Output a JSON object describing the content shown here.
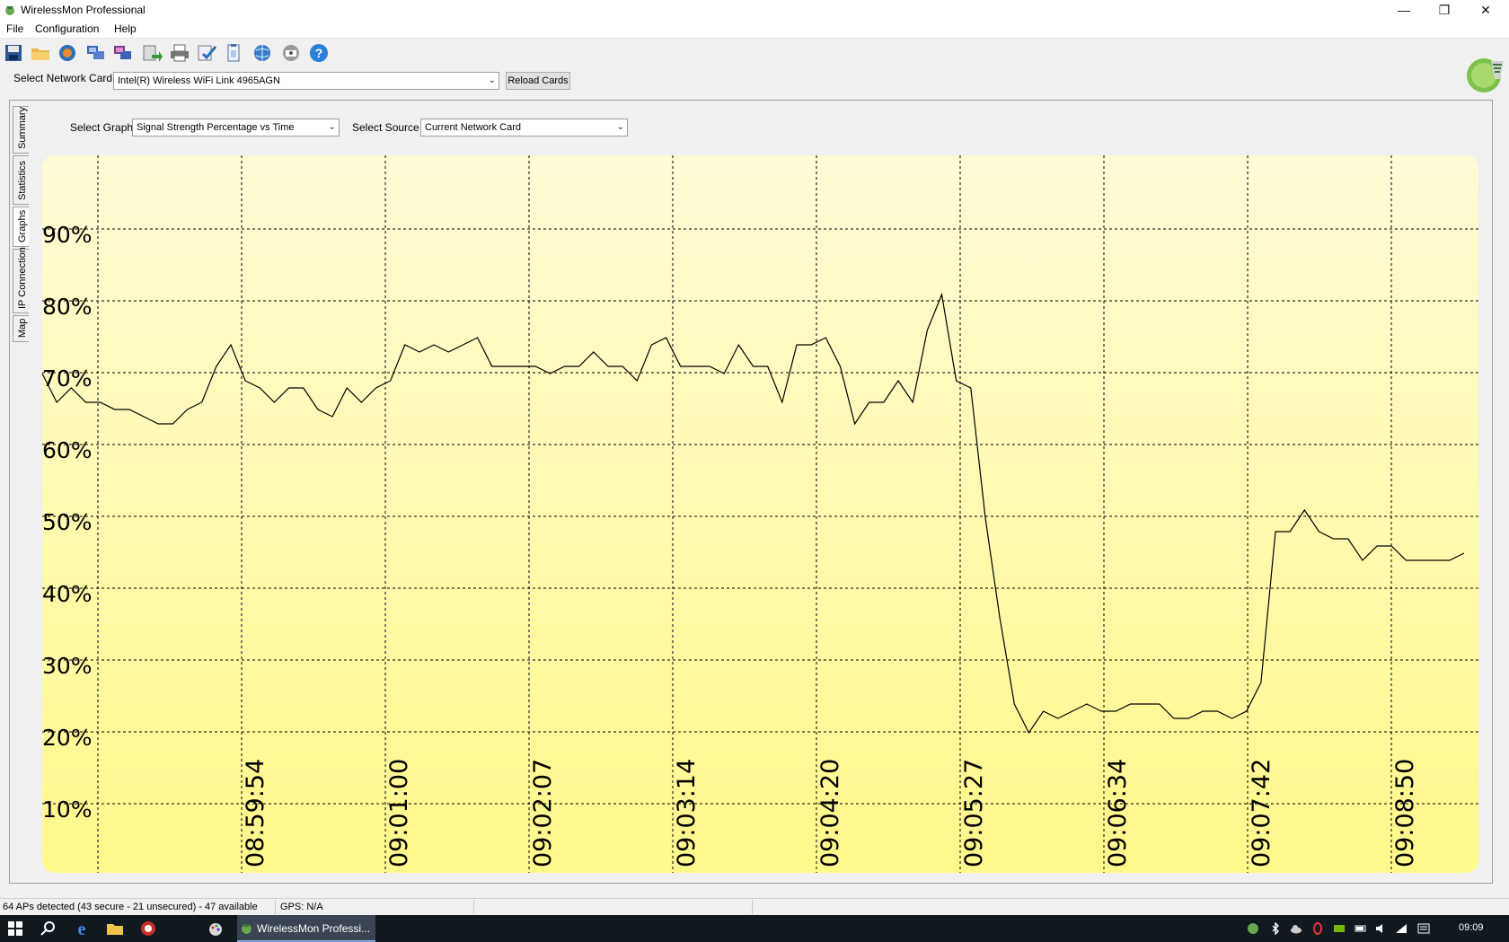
{
  "window": {
    "title": "WirelessMon Professional",
    "controls": {
      "minimize": "—",
      "restore": "❐",
      "close": "✕"
    }
  },
  "menu": [
    "File",
    "Configuration",
    "Help"
  ],
  "toolbar_icons": [
    "save-icon",
    "open-folder-icon",
    "record-icon",
    "network-card-icon",
    "log-icon",
    "export-icon",
    "print-icon",
    "check-icon",
    "clipboard-icon",
    "globe-icon",
    "info-icon",
    "help-icon"
  ],
  "network": {
    "select_label": "Select Network Card",
    "selected_card": "Intel(R) Wireless WiFi Link 4965AGN",
    "reload_label": "Reload Cards"
  },
  "tabs": [
    "Summary",
    "Statistics",
    "Graphs",
    "IP Connection",
    "Map"
  ],
  "active_tab": "Graphs",
  "graph_controls": {
    "graph_label": "Select Graph",
    "graph_value": "Signal Strength Percentage vs Time",
    "source_label": "Select Source",
    "source_value": "Current Network Card"
  },
  "chart_data": {
    "type": "line",
    "ylabels": [
      "90%",
      "80%",
      "70%",
      "60%",
      "50%",
      "40%",
      "30%",
      "20%",
      "10%"
    ],
    "ylim": [
      0,
      100
    ],
    "time_labels": [
      "08:59:54",
      "09:01:00",
      "09:02:07",
      "09:03:14",
      "09:04:20",
      "09:05:27",
      "09:06:34",
      "09:07:42",
      "09:08:50"
    ],
    "grid": true,
    "series": [
      {
        "values": [
          70,
          66,
          68,
          66,
          66,
          65,
          65,
          64,
          63,
          63,
          65,
          66,
          71,
          74,
          69,
          68,
          66,
          68,
          68,
          65,
          64,
          68,
          66,
          68,
          69,
          74,
          73,
          74,
          73,
          74,
          75,
          71,
          71,
          71,
          71,
          70,
          71,
          71,
          73,
          71,
          71,
          69,
          74,
          75,
          71,
          71,
          71,
          70,
          74,
          71,
          71,
          66,
          74,
          74,
          75,
          71,
          63,
          66,
          66,
          69,
          66,
          76,
          81,
          69,
          68,
          50,
          36,
          24,
          20,
          23,
          22,
          23,
          24,
          23,
          23,
          24,
          24,
          24,
          22,
          22,
          23,
          23,
          22,
          23,
          27,
          48,
          48,
          51,
          48,
          47,
          47,
          44,
          46,
          46,
          44,
          44,
          44,
          44,
          45
        ]
      }
    ]
  },
  "status": {
    "aps": "64 APs detected (43 secure - 21 unsecured) - 47 available",
    "gps": "GPS: N/A"
  },
  "taskbar": {
    "active_app": "WirelessMon Professi...",
    "clock": "09:09"
  }
}
